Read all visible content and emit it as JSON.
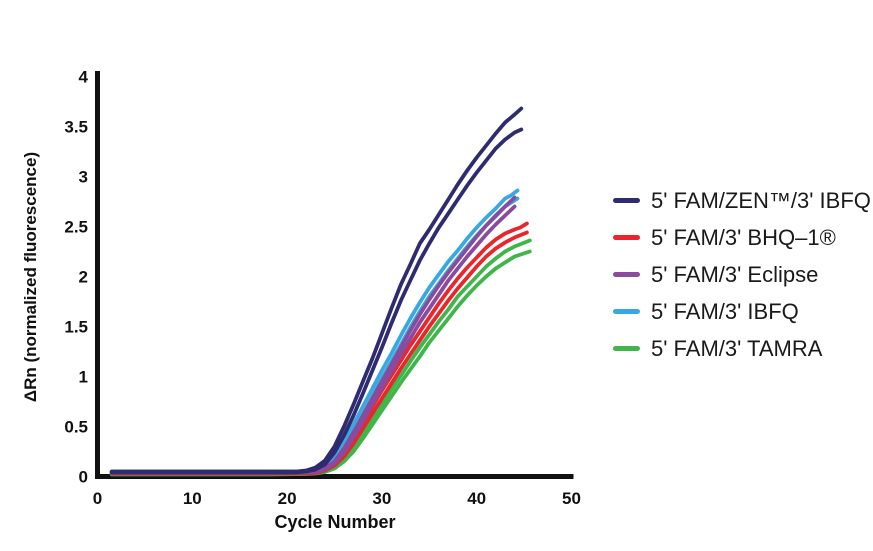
{
  "page": {
    "background": "#ffffff",
    "text_color": "#1a1a1a",
    "axis_color": "#111111"
  },
  "chart_data": {
    "type": "line",
    "title": "",
    "xlabel": "Cycle Number",
    "ylabel": "ΔRn (normalized fluorescence)",
    "xlim": [
      0,
      50
    ],
    "ylim": [
      0,
      4
    ],
    "x_ticks": [
      0,
      10,
      20,
      30,
      40,
      50
    ],
    "y_ticks": [
      0,
      0.5,
      1,
      1.5,
      2,
      2.5,
      3,
      3.5,
      4
    ],
    "grid": false,
    "legend_position": "right",
    "legend": [
      {
        "label": "5' FAM/ZEN™/3' IBFQ",
        "color": "#2e2b71"
      },
      {
        "label": "5' FAM/3' BHQ–1®",
        "color": "#e8262b"
      },
      {
        "label": "5' FAM/3' Eclipse",
        "color": "#8a4a9e"
      },
      {
        "label": "5' FAM/3' IBFQ",
        "color": "#38a8e0"
      },
      {
        "label": "5' FAM/3' TAMRA",
        "color": "#3fb54a"
      }
    ],
    "series": [
      {
        "name": "5' FAM/3' TAMRA rep1",
        "color": "#3fb54a",
        "points": [
          [
            1.5,
            0.025
          ],
          [
            10,
            0.025
          ],
          [
            18,
            0.025
          ],
          [
            22,
            0.03
          ],
          [
            23,
            0.035
          ],
          [
            24,
            0.05
          ],
          [
            25,
            0.09
          ],
          [
            26,
            0.17
          ],
          [
            27,
            0.29
          ],
          [
            28,
            0.43
          ],
          [
            29,
            0.58
          ],
          [
            30,
            0.72
          ],
          [
            31,
            0.87
          ],
          [
            32,
            1.01
          ],
          [
            33,
            1.15
          ],
          [
            34,
            1.29
          ],
          [
            35,
            1.42
          ],
          [
            36,
            1.55
          ],
          [
            37,
            1.67
          ],
          [
            38,
            1.8
          ],
          [
            39,
            1.9
          ],
          [
            40,
            2.0
          ],
          [
            41,
            2.1
          ],
          [
            42,
            2.18
          ],
          [
            43,
            2.25
          ],
          [
            44,
            2.3
          ],
          [
            45.6,
            2.36
          ]
        ]
      },
      {
        "name": "5' FAM/3' TAMRA rep2",
        "color": "#3fb54a",
        "points": [
          [
            1.5,
            0.02
          ],
          [
            10,
            0.02
          ],
          [
            18,
            0.02
          ],
          [
            22,
            0.025
          ],
          [
            23,
            0.03
          ],
          [
            24,
            0.045
          ],
          [
            25,
            0.08
          ],
          [
            26,
            0.15
          ],
          [
            27,
            0.25
          ],
          [
            28,
            0.38
          ],
          [
            29,
            0.52
          ],
          [
            30,
            0.66
          ],
          [
            31,
            0.8
          ],
          [
            32,
            0.94
          ],
          [
            33,
            1.07
          ],
          [
            34,
            1.2
          ],
          [
            35,
            1.34
          ],
          [
            36,
            1.46
          ],
          [
            37,
            1.58
          ],
          [
            38,
            1.7
          ],
          [
            39,
            1.81
          ],
          [
            40,
            1.91
          ],
          [
            41,
            2.0
          ],
          [
            42,
            2.08
          ],
          [
            43,
            2.14
          ],
          [
            44,
            2.2
          ],
          [
            45.6,
            2.25
          ]
        ]
      },
      {
        "name": "5' FAM/3' BHQ-1 rep1",
        "color": "#e8262b",
        "points": [
          [
            1.5,
            0.03
          ],
          [
            10,
            0.03
          ],
          [
            18,
            0.03
          ],
          [
            22,
            0.035
          ],
          [
            23,
            0.04
          ],
          [
            24,
            0.07
          ],
          [
            25,
            0.13
          ],
          [
            26,
            0.24
          ],
          [
            27,
            0.38
          ],
          [
            28,
            0.54
          ],
          [
            29,
            0.7
          ],
          [
            30,
            0.86
          ],
          [
            31,
            1.01
          ],
          [
            32,
            1.16
          ],
          [
            33,
            1.31
          ],
          [
            34,
            1.45
          ],
          [
            35,
            1.59
          ],
          [
            36,
            1.73
          ],
          [
            37,
            1.86
          ],
          [
            38,
            1.98
          ],
          [
            39,
            2.09
          ],
          [
            40,
            2.19
          ],
          [
            41,
            2.29
          ],
          [
            42,
            2.37
          ],
          [
            43,
            2.43
          ],
          [
            44,
            2.47
          ],
          [
            44.6,
            2.49
          ],
          [
            45.3,
            2.53
          ]
        ]
      },
      {
        "name": "5' FAM/3' BHQ-1 rep2",
        "color": "#e8262b",
        "points": [
          [
            1.5,
            0.028
          ],
          [
            10,
            0.028
          ],
          [
            18,
            0.028
          ],
          [
            22,
            0.03
          ],
          [
            23,
            0.035
          ],
          [
            24,
            0.06
          ],
          [
            25,
            0.11
          ],
          [
            26,
            0.2
          ],
          [
            27,
            0.33
          ],
          [
            28,
            0.48
          ],
          [
            29,
            0.63
          ],
          [
            30,
            0.78
          ],
          [
            31,
            0.93
          ],
          [
            32,
            1.08
          ],
          [
            33,
            1.22
          ],
          [
            34,
            1.36
          ],
          [
            35,
            1.5
          ],
          [
            36,
            1.63
          ],
          [
            37,
            1.76
          ],
          [
            38,
            1.88
          ],
          [
            39,
            1.99
          ],
          [
            40,
            2.1
          ],
          [
            41,
            2.2
          ],
          [
            42,
            2.28
          ],
          [
            43,
            2.34
          ],
          [
            44,
            2.39
          ],
          [
            45.3,
            2.44
          ]
        ]
      },
      {
        "name": "5' FAM/3' IBFQ rep1",
        "color": "#38a8e0",
        "points": [
          [
            1.5,
            0.05
          ],
          [
            8,
            0.05
          ],
          [
            16,
            0.05
          ],
          [
            21,
            0.05
          ],
          [
            23,
            0.06
          ],
          [
            24,
            0.1
          ],
          [
            25,
            0.2
          ],
          [
            26,
            0.35
          ],
          [
            27,
            0.52
          ],
          [
            28,
            0.7
          ],
          [
            29,
            0.88
          ],
          [
            30,
            1.06
          ],
          [
            31,
            1.23
          ],
          [
            32,
            1.41
          ],
          [
            33,
            1.58
          ],
          [
            34,
            1.74
          ],
          [
            35,
            1.89
          ],
          [
            36,
            2.02
          ],
          [
            37,
            2.15
          ],
          [
            38,
            2.26
          ],
          [
            39,
            2.38
          ],
          [
            40,
            2.49
          ],
          [
            41,
            2.59
          ],
          [
            42,
            2.68
          ],
          [
            43,
            2.78
          ],
          [
            43.6,
            2.81
          ],
          [
            44.3,
            2.86
          ]
        ]
      },
      {
        "name": "5' FAM/3' IBFQ rep2",
        "color": "#38a8e0",
        "points": [
          [
            1.5,
            0.045
          ],
          [
            10,
            0.045
          ],
          [
            18,
            0.045
          ],
          [
            22,
            0.05
          ],
          [
            23,
            0.055
          ],
          [
            24,
            0.08
          ],
          [
            25,
            0.16
          ],
          [
            26,
            0.29
          ],
          [
            27,
            0.45
          ],
          [
            28,
            0.62
          ],
          [
            29,
            0.8
          ],
          [
            30,
            0.98
          ],
          [
            31,
            1.15
          ],
          [
            32,
            1.32
          ],
          [
            33,
            1.49
          ],
          [
            34,
            1.65
          ],
          [
            35,
            1.8
          ],
          [
            36,
            1.93
          ],
          [
            37,
            2.06
          ],
          [
            38,
            2.18
          ],
          [
            39,
            2.3
          ],
          [
            40,
            2.41
          ],
          [
            41,
            2.51
          ],
          [
            42,
            2.6
          ],
          [
            43,
            2.7
          ],
          [
            44.3,
            2.78
          ]
        ]
      },
      {
        "name": "5' FAM/3' Eclipse rep1",
        "color": "#8a4a9e",
        "points": [
          [
            1.5,
            0.04
          ],
          [
            10,
            0.04
          ],
          [
            18,
            0.04
          ],
          [
            22,
            0.045
          ],
          [
            23,
            0.05
          ],
          [
            24,
            0.08
          ],
          [
            25,
            0.15
          ],
          [
            26,
            0.28
          ],
          [
            27,
            0.44
          ],
          [
            28,
            0.61
          ],
          [
            29,
            0.78
          ],
          [
            30,
            0.95
          ],
          [
            31,
            1.12
          ],
          [
            32,
            1.29
          ],
          [
            33,
            1.46
          ],
          [
            34,
            1.62
          ],
          [
            35,
            1.77
          ],
          [
            36,
            1.91
          ],
          [
            37,
            2.04
          ],
          [
            38,
            2.16
          ],
          [
            39,
            2.28
          ],
          [
            40,
            2.4
          ],
          [
            41,
            2.51
          ],
          [
            42,
            2.61
          ],
          [
            43,
            2.7
          ],
          [
            44,
            2.79
          ]
        ]
      },
      {
        "name": "5' FAM/3' Eclipse rep2",
        "color": "#8a4a9e",
        "points": [
          [
            1.5,
            0.035
          ],
          [
            10,
            0.035
          ],
          [
            18,
            0.035
          ],
          [
            22,
            0.04
          ],
          [
            23,
            0.045
          ],
          [
            24,
            0.07
          ],
          [
            25,
            0.13
          ],
          [
            26,
            0.24
          ],
          [
            27,
            0.39
          ],
          [
            28,
            0.55
          ],
          [
            29,
            0.72
          ],
          [
            30,
            0.89
          ],
          [
            31,
            1.05
          ],
          [
            32,
            1.22
          ],
          [
            33,
            1.38
          ],
          [
            34,
            1.54
          ],
          [
            35,
            1.68
          ],
          [
            36,
            1.82
          ],
          [
            37,
            1.96
          ],
          [
            38,
            2.08
          ],
          [
            39,
            2.2
          ],
          [
            40,
            2.31
          ],
          [
            41,
            2.42
          ],
          [
            42,
            2.52
          ],
          [
            43,
            2.61
          ],
          [
            44,
            2.7
          ]
        ]
      },
      {
        "name": "5' FAM/ZEN/3' IBFQ rep1",
        "color": "#2e2b71",
        "points": [
          [
            1.5,
            0.05
          ],
          [
            6,
            0.05
          ],
          [
            12,
            0.05
          ],
          [
            18,
            0.05
          ],
          [
            21,
            0.05
          ],
          [
            22,
            0.06
          ],
          [
            23,
            0.09
          ],
          [
            24,
            0.16
          ],
          [
            25,
            0.3
          ],
          [
            26,
            0.5
          ],
          [
            27,
            0.72
          ],
          [
            28,
            0.95
          ],
          [
            29,
            1.18
          ],
          [
            30,
            1.43
          ],
          [
            31,
            1.68
          ],
          [
            32,
            1.92
          ],
          [
            33,
            2.12
          ],
          [
            34,
            2.33
          ],
          [
            35,
            2.47
          ],
          [
            36,
            2.62
          ],
          [
            37,
            2.77
          ],
          [
            38,
            2.92
          ],
          [
            39,
            3.06
          ],
          [
            40,
            3.19
          ],
          [
            41,
            3.31
          ],
          [
            42,
            3.43
          ],
          [
            43,
            3.54
          ],
          [
            44,
            3.62
          ],
          [
            44.7,
            3.68
          ]
        ]
      },
      {
        "name": "5' FAM/ZEN/3' IBFQ rep2",
        "color": "#2e2b71",
        "points": [
          [
            1.5,
            0.04
          ],
          [
            6,
            0.04
          ],
          [
            12,
            0.04
          ],
          [
            18,
            0.04
          ],
          [
            21,
            0.04
          ],
          [
            22,
            0.05
          ],
          [
            23,
            0.07
          ],
          [
            24,
            0.12
          ],
          [
            25,
            0.24
          ],
          [
            26,
            0.41
          ],
          [
            27,
            0.61
          ],
          [
            28,
            0.83
          ],
          [
            29,
            1.06
          ],
          [
            30,
            1.29
          ],
          [
            31,
            1.53
          ],
          [
            32,
            1.76
          ],
          [
            33,
            1.96
          ],
          [
            34,
            2.16
          ],
          [
            35,
            2.33
          ],
          [
            36,
            2.49
          ],
          [
            37,
            2.63
          ],
          [
            38,
            2.77
          ],
          [
            39,
            2.91
          ],
          [
            40,
            3.04
          ],
          [
            41,
            3.16
          ],
          [
            42,
            3.28
          ],
          [
            43,
            3.37
          ],
          [
            44,
            3.44
          ],
          [
            44.7,
            3.47
          ]
        ]
      }
    ]
  }
}
